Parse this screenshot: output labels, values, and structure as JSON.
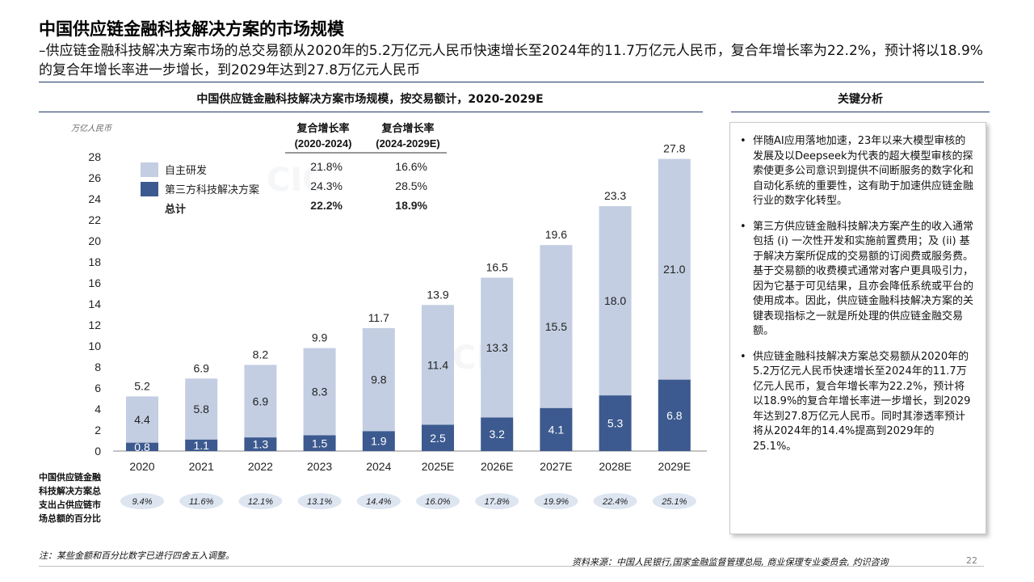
{
  "header": {
    "title": "中国供应链金融科技解决方案的市场规模",
    "subtitle": "–供应链金融科技解决方案市场的总交易额从2020年的5.2万亿元人民币快速增长至2024年的11.7万亿元人民币，复合年增长率为22.2%，预计将以18.9%的复合年增长率进一步增长，到2029年达到27.8万亿元人民币"
  },
  "chart_data": {
    "type": "bar",
    "stacked": true,
    "title": "中国供应链金融科技解决方案市场规模，按交易额计，2020-2029E",
    "ylabel": "万亿人民币",
    "ylim": [
      0,
      28
    ],
    "yticks": [
      "0",
      "2",
      "4",
      "6",
      "8",
      "10",
      "12",
      "14",
      "16",
      "18",
      "20",
      "22",
      "24",
      "26",
      "28"
    ],
    "categories": [
      "2020",
      "2021",
      "2022",
      "2023",
      "2024",
      "2025E",
      "2026E",
      "2027E",
      "2028E",
      "2029E"
    ],
    "series": [
      {
        "name": "第三方科技解决方案",
        "color": "#3c5a8f",
        "values": [
          0.8,
          1.1,
          1.3,
          1.5,
          1.9,
          2.5,
          3.2,
          4.1,
          5.3,
          6.8
        ],
        "labels": [
          "0.8",
          "1.1",
          "1.3",
          "1.5",
          "1.9",
          "2.5",
          "3.2",
          "4.1",
          "5.3",
          "6.8"
        ]
      },
      {
        "name": "自主研发",
        "color": "#c3cee2",
        "values": [
          4.4,
          5.8,
          6.9,
          8.3,
          9.8,
          11.4,
          13.3,
          15.5,
          18.0,
          21.0
        ],
        "labels": [
          "4.4",
          "5.8",
          "6.9",
          "8.3",
          "9.8",
          "11.4",
          "13.3",
          "15.5",
          "18.0",
          "21.0"
        ]
      }
    ],
    "totals": [
      5.2,
      6.9,
      8.2,
      9.9,
      11.7,
      13.9,
      16.5,
      19.6,
      23.3,
      27.8
    ],
    "total_labels": [
      "5.2",
      "6.9",
      "8.2",
      "9.9",
      "11.7",
      "13.9",
      "16.5",
      "19.6",
      "23.3",
      "27.8"
    ],
    "legend": {
      "items": [
        "自主研发",
        "第三方科技解决方案",
        "总计"
      ],
      "cagr_headers": [
        [
          "复合增长率",
          "(2020-2024)"
        ],
        [
          "复合增长率",
          "(2024-2029E)"
        ]
      ],
      "cagr_rows": [
        [
          "21.8%",
          "16.6%"
        ],
        [
          "24.3%",
          "28.5%"
        ],
        [
          "22.2%",
          "18.9%"
        ]
      ]
    },
    "share_row": {
      "label_lines": [
        "中国供应链金融",
        "科技解决方案总",
        "支出占供应链市",
        "场总额的百分比"
      ],
      "values": [
        "9.4%",
        "11.6%",
        "12.1%",
        "13.1%",
        "14.4%",
        "16.0%",
        "17.8%",
        "19.9%",
        "22.4%",
        "25.1%"
      ]
    }
  },
  "panel": {
    "title": "关键分析",
    "bullets": [
      "伴随AI应用落地加速，23年以来大模型审核的发展及以Deepseek为代表的超大模型审核的探索使更多公司意识到提供不间断服务的数字化和自动化系统的重要性，这有助于加速供应链金融行业的数字化转型。",
      "第三方供应链金融科技解决方案产生的收入通常包括 (i) 一次性开发和实施前置费用；及 (ii) 基于解决方案所促成的交易额的订阅费或服务费。基于交易额的收费模式通常对客户更具吸引力，因为它基于可见结果，且亦会降低系统或平台的使用成本。因此，供应链金融科技解决方案的关键表现指标之一就是所处理的供应链金融交易额。",
      "供应链金融科技解决方案总交易额从2020年的5.2万亿元人民币快速增长至2024年的11.7万亿元人民币，复合年增长率为22.2%，预计将以18.9%的复合年增长率进一步增长，到2029年达到27.8万亿元人民币。同时其渗透率预计将从2024年的14.4%提高到2029年的25.1%。"
    ]
  },
  "footer": {
    "note": "注：某些金额和百分比数字已进行四舍五入调整。",
    "source": "资料来源：中国人民银行,国家金融监督管理总局, 商业保理专业委员会, 灼识咨询",
    "page": "22"
  }
}
